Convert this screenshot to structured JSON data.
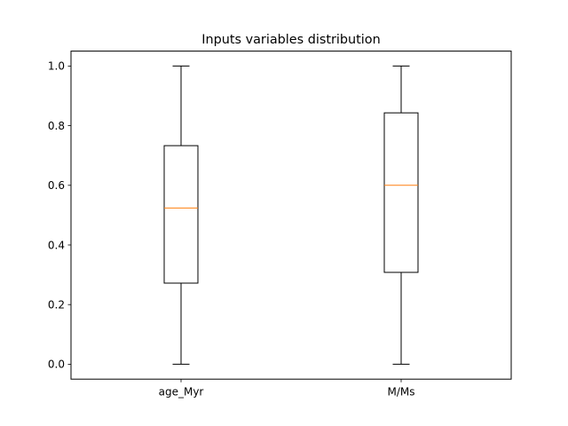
{
  "chart_data": {
    "type": "boxplot",
    "title": "Inputs variables distribution",
    "xlabel": "",
    "ylabel": "",
    "categories": [
      "age_Myr",
      "M/Ms"
    ],
    "boxes": [
      {
        "category": "age_Myr",
        "whisker_low": 0.0,
        "q1": 0.272,
        "median": 0.524,
        "q3": 0.733,
        "whisker_high": 1.0
      },
      {
        "category": "M/Ms",
        "whisker_low": 0.0,
        "q1": 0.308,
        "median": 0.6,
        "q3": 0.843,
        "whisker_high": 1.0
      }
    ],
    "ylim": [
      -0.05,
      1.05
    ],
    "yticks": [
      0.0,
      0.2,
      0.4,
      0.6,
      0.8,
      1.0
    ],
    "ytick_labels": [
      "0.0",
      "0.2",
      "0.4",
      "0.6",
      "0.8",
      "1.0"
    ],
    "grid": false,
    "colors": {
      "box": "#000000",
      "median": "#ff7f0e",
      "background": "#ffffff"
    }
  }
}
